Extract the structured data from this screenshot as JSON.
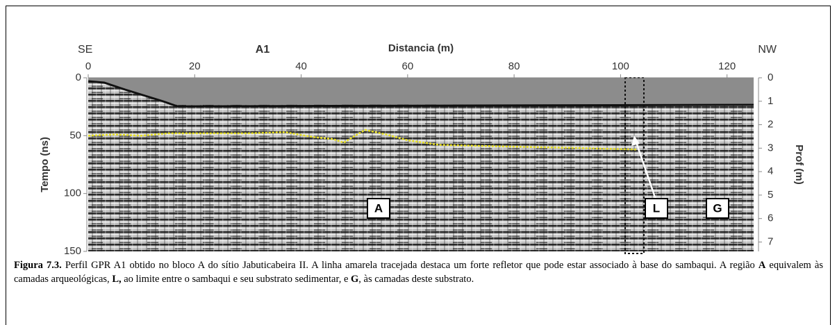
{
  "chart_data": {
    "type": "line",
    "title": "A1",
    "corner_labels": [
      "SE",
      "NW"
    ],
    "xlabel": "Distancia (m)",
    "ylabel": "Tempo (ns)",
    "y2label": "Prof (m)",
    "xlim": [
      0,
      125
    ],
    "xticks": [
      0,
      20,
      40,
      60,
      80,
      100,
      120
    ],
    "ylim": [
      0,
      150
    ],
    "yticks": [
      0,
      50,
      100,
      150
    ],
    "y2lim": [
      0,
      7.4
    ],
    "y2ticks": [
      0,
      1,
      2,
      3,
      4,
      5,
      6,
      7
    ],
    "series": [
      {
        "color": "#e8e020",
        "x": [
          0,
          5,
          10,
          15,
          20,
          30,
          37,
          42,
          46,
          48,
          52,
          56,
          60,
          66,
          75,
          85,
          95,
          103
        ],
        "values": [
          50,
          49,
          50,
          48,
          48,
          48,
          47,
          51,
          53,
          56,
          45,
          49,
          54,
          58,
          59,
          60,
          61,
          62
        ]
      }
    ],
    "region_labels": [
      "A",
      "L",
      "G"
    ]
  },
  "caption": [
    {
      "text": "Figura 7.3.",
      "bold": true
    },
    {
      "text": " Perfil GPR A1 obtido no bloco A do sítio Jabuticabeira II. A linha amarela tracejada destaca um forte refletor que pode estar associado à base do sambaqui. A região ",
      "bold": false
    },
    {
      "text": "A",
      "bold": true
    },
    {
      "text": " equivalem às camadas arqueológicas, ",
      "bold": false
    },
    {
      "text": "L,",
      "bold": true
    },
    {
      "text": " ao limite entre o sambaqui e seu substrato sedimentar, e ",
      "bold": false
    },
    {
      "text": "G",
      "bold": true
    },
    {
      "text": ", às camadas deste substrato.",
      "bold": false
    }
  ]
}
